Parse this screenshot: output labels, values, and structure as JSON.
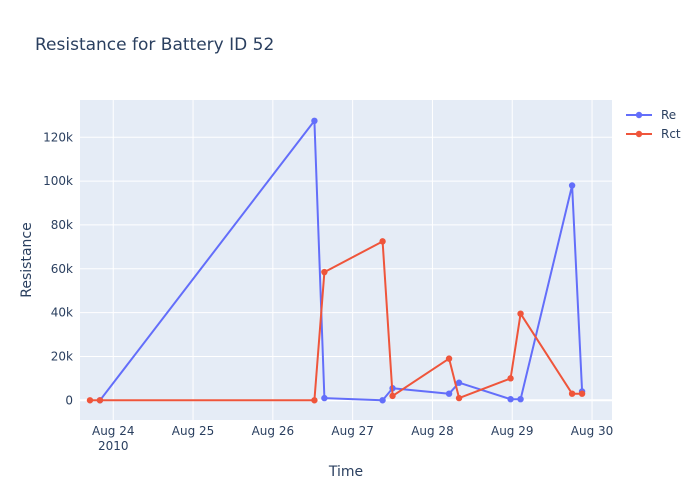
{
  "chart_data": {
    "type": "line",
    "title": "Resistance for Battery ID 52",
    "xlabel": "Time",
    "ylabel": "Resistance",
    "xlim": [
      "2010-08-23T14:00",
      "2010-08-30T06:00"
    ],
    "ylim": [
      -9000,
      137000
    ],
    "x_ticks": [
      {
        "value": "2010-08-24T00:00",
        "label": "Aug 24",
        "sublabel": "2010"
      },
      {
        "value": "2010-08-25T00:00",
        "label": "Aug 25"
      },
      {
        "value": "2010-08-26T00:00",
        "label": "Aug 26"
      },
      {
        "value": "2010-08-27T00:00",
        "label": "Aug 27"
      },
      {
        "value": "2010-08-28T00:00",
        "label": "Aug 28"
      },
      {
        "value": "2010-08-29T00:00",
        "label": "Aug 29"
      },
      {
        "value": "2010-08-30T00:00",
        "label": "Aug 30"
      }
    ],
    "y_ticks": [
      {
        "value": 0,
        "label": "0"
      },
      {
        "value": 20000,
        "label": "20k"
      },
      {
        "value": 40000,
        "label": "40k"
      },
      {
        "value": 60000,
        "label": "60k"
      },
      {
        "value": 80000,
        "label": "80k"
      },
      {
        "value": 100000,
        "label": "100k"
      },
      {
        "value": 120000,
        "label": "120k"
      }
    ],
    "grid": true,
    "legend_position": "top-right",
    "series": [
      {
        "name": "Re",
        "color": "#636efa",
        "points": [
          {
            "x": "2010-08-23T20:00",
            "y": 0
          },
          {
            "x": "2010-08-26T12:30",
            "y": 127500
          },
          {
            "x": "2010-08-26T15:30",
            "y": 1000
          },
          {
            "x": "2010-08-27T09:00",
            "y": 0
          },
          {
            "x": "2010-08-27T12:00",
            "y": 5500
          },
          {
            "x": "2010-08-28T05:00",
            "y": 3000
          },
          {
            "x": "2010-08-28T08:00",
            "y": 8000
          },
          {
            "x": "2010-08-28T23:30",
            "y": 500
          },
          {
            "x": "2010-08-29T02:30",
            "y": 500
          },
          {
            "x": "2010-08-29T18:00",
            "y": 98000
          },
          {
            "x": "2010-08-29T21:00",
            "y": 4000
          }
        ]
      },
      {
        "name": "Rct",
        "color": "#ef553b",
        "points": [
          {
            "x": "2010-08-23T17:00",
            "y": 0
          },
          {
            "x": "2010-08-23T20:00",
            "y": 0
          },
          {
            "x": "2010-08-26T12:30",
            "y": 0
          },
          {
            "x": "2010-08-26T15:30",
            "y": 58500
          },
          {
            "x": "2010-08-27T09:00",
            "y": 72500
          },
          {
            "x": "2010-08-27T12:00",
            "y": 2000
          },
          {
            "x": "2010-08-28T05:00",
            "y": 19000
          },
          {
            "x": "2010-08-28T08:00",
            "y": 1000
          },
          {
            "x": "2010-08-28T23:30",
            "y": 10000
          },
          {
            "x": "2010-08-29T02:30",
            "y": 39500
          },
          {
            "x": "2010-08-29T18:00",
            "y": 3000
          },
          {
            "x": "2010-08-29T21:00",
            "y": 3000
          }
        ]
      }
    ]
  }
}
